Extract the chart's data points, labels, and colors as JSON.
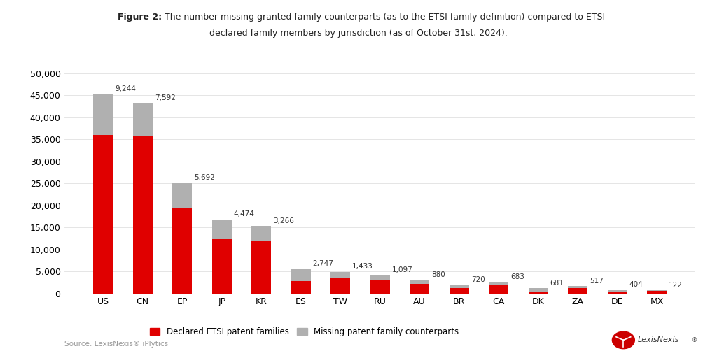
{
  "categories": [
    "US",
    "CN",
    "EP",
    "JP",
    "KR",
    "ES",
    "TW",
    "RU",
    "AU",
    "BR",
    "CA",
    "DK",
    "ZA",
    "DE",
    "MX"
  ],
  "declared": [
    35956,
    35608,
    19408,
    12326,
    12034,
    2853,
    3467,
    3103,
    2220,
    1280,
    1917,
    519,
    1183,
    396,
    578
  ],
  "missing": [
    9244,
    7592,
    5692,
    4474,
    3266,
    2747,
    1433,
    1097,
    880,
    720,
    683,
    681,
    517,
    404,
    122
  ],
  "declared_color": "#e00000",
  "missing_color": "#b0b0b0",
  "title_bold": "Figure 2:",
  "title_line1_rest": " The number missing granted family counterparts (as to the ETSI family definition) compared to ETSI",
  "title_line2": "declared family members by jurisdiction (as of October 31st, 2024).",
  "ylabel": "",
  "xlabel": "",
  "ylim": [
    0,
    52000
  ],
  "yticks": [
    0,
    5000,
    10000,
    15000,
    20000,
    25000,
    30000,
    35000,
    40000,
    45000,
    50000
  ],
  "legend_declared": "Declared ETSI patent families",
  "legend_missing": "Missing patent family counterparts",
  "source_text": "Source: LexisNexis® iPlytics",
  "background_color": "#ffffff"
}
